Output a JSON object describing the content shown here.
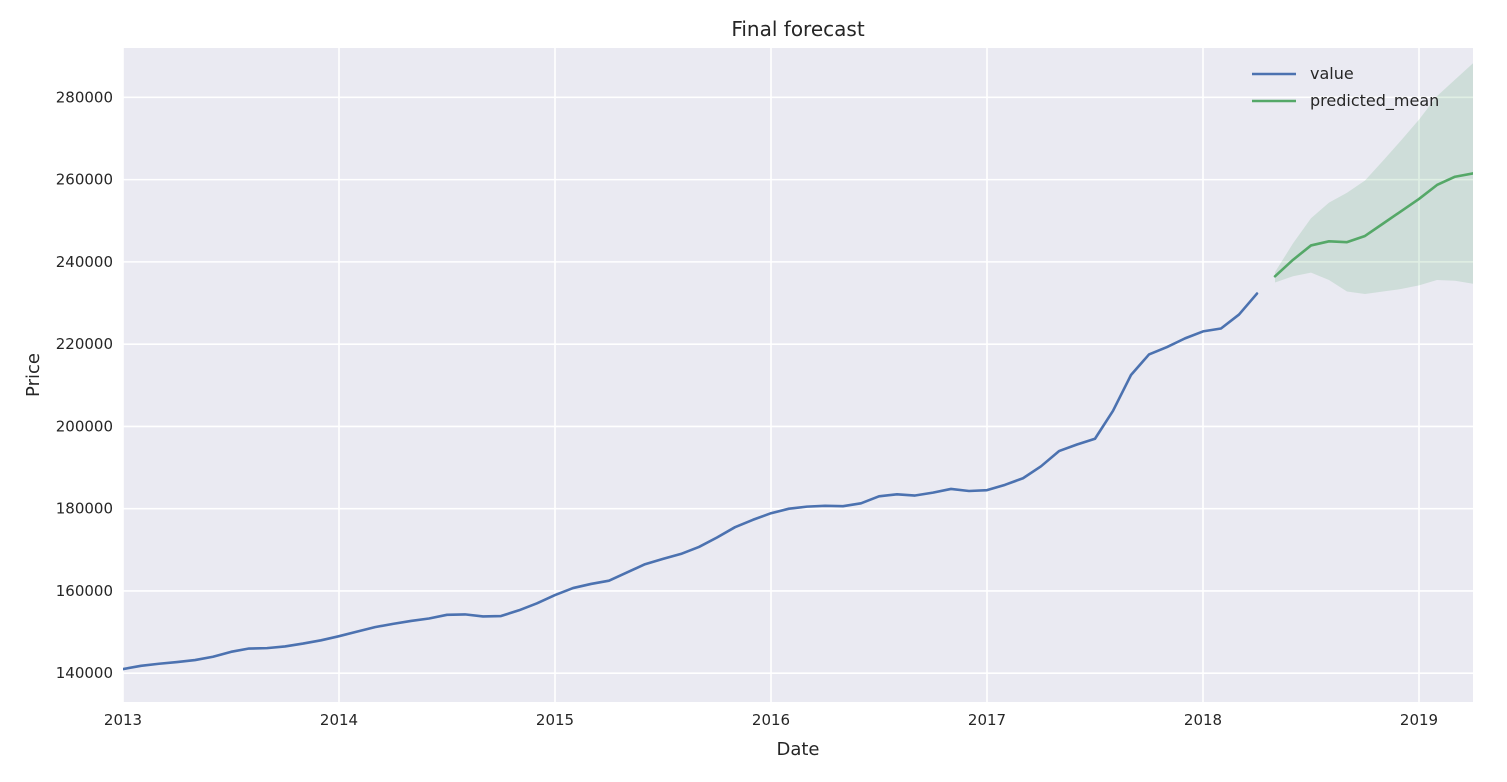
{
  "chart_data": {
    "type": "line",
    "title": "Final forecast",
    "xlabel": "Date",
    "ylabel": "Price",
    "xlim": [
      "2013-01",
      "2019-04"
    ],
    "ylim": [
      133000,
      292000
    ],
    "x_ticks": [
      "2013",
      "2014",
      "2015",
      "2016",
      "2017",
      "2018",
      "2019"
    ],
    "y_ticks": [
      140000,
      160000,
      180000,
      200000,
      220000,
      240000,
      260000,
      280000
    ],
    "grid": true,
    "legend_position": "top-right",
    "colors": {
      "background": "#eaeaf2",
      "grid": "#ffffff",
      "value": "#4c72b0",
      "predicted_mean": "#55a868",
      "confidence_band": "#55a868"
    },
    "series": [
      {
        "name": "value",
        "x": [
          "2013-01",
          "2013-02",
          "2013-03",
          "2013-04",
          "2013-05",
          "2013-06",
          "2013-07",
          "2013-08",
          "2013-09",
          "2013-10",
          "2013-11",
          "2013-12",
          "2014-01",
          "2014-02",
          "2014-03",
          "2014-04",
          "2014-05",
          "2014-06",
          "2014-07",
          "2014-08",
          "2014-09",
          "2014-10",
          "2014-11",
          "2014-12",
          "2015-01",
          "2015-02",
          "2015-03",
          "2015-04",
          "2015-05",
          "2015-06",
          "2015-07",
          "2015-08",
          "2015-09",
          "2015-10",
          "2015-11",
          "2015-12",
          "2016-01",
          "2016-02",
          "2016-03",
          "2016-04",
          "2016-05",
          "2016-06",
          "2016-07",
          "2016-08",
          "2016-09",
          "2016-10",
          "2016-11",
          "2016-12",
          "2017-01",
          "2017-02",
          "2017-03",
          "2017-04",
          "2017-05",
          "2017-06",
          "2017-07",
          "2017-08",
          "2017-09",
          "2017-10",
          "2017-11",
          "2017-12",
          "2018-01",
          "2018-02",
          "2018-03",
          "2018-04"
        ],
        "y": [
          141000,
          141800,
          142300,
          142700,
          143200,
          144000,
          145200,
          146000,
          146100,
          146500,
          147200,
          148000,
          149000,
          150100,
          151200,
          152000,
          152700,
          153300,
          154200,
          154300,
          153800,
          153900,
          155300,
          157000,
          159000,
          160700,
          161700,
          162500,
          164500,
          166500,
          167800,
          169000,
          170700,
          173000,
          175500,
          177300,
          178900,
          180000,
          180500,
          180700,
          180600,
          181300,
          183000,
          183500,
          183200,
          183900,
          184800,
          184300,
          184500,
          185800,
          187400,
          190300,
          194000,
          195600,
          197000,
          203800,
          212500,
          217500,
          219300,
          221400,
          223100,
          223800,
          227200,
          232300
        ]
      },
      {
        "name": "predicted_mean",
        "x": [
          "2018-05",
          "2018-06",
          "2018-07",
          "2018-08",
          "2018-09",
          "2018-10",
          "2018-11",
          "2018-12",
          "2019-01",
          "2019-02",
          "2019-03",
          "2019-04"
        ],
        "y": [
          236500,
          240500,
          244000,
          245000,
          244800,
          246300,
          249300,
          252300,
          255300,
          258700,
          260700,
          261500
        ],
        "lower": [
          235000,
          236500,
          237400,
          235600,
          232800,
          232200,
          232800,
          233400,
          234300,
          235600,
          235400,
          234700
        ],
        "upper": [
          237500,
          244500,
          250600,
          254400,
          256800,
          259800,
          264600,
          269500,
          274600,
          280300,
          284300,
          288300
        ]
      }
    ]
  }
}
